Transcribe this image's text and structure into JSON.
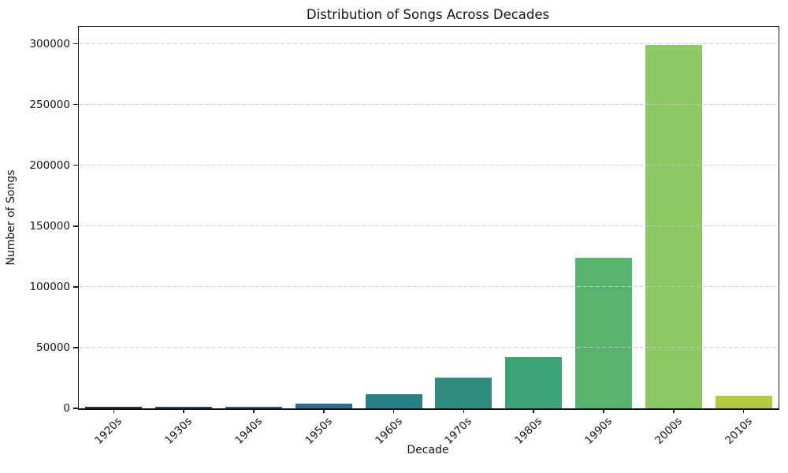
{
  "chart_data": {
    "type": "bar",
    "title": "Distribution of Songs Across Decades",
    "xlabel": "Decade",
    "ylabel": "Number of Songs",
    "categories": [
      "1920s",
      "1930s",
      "1940s",
      "1950s",
      "1960s",
      "1970s",
      "1980s",
      "1990s",
      "2000s",
      "2010s"
    ],
    "values": [
      1000,
      1200,
      1500,
      3600,
      12000,
      25500,
      42500,
      124000,
      299000,
      10300
    ],
    "bar_colors": [
      "#2f3040",
      "#2f4a64",
      "#2e6276",
      "#2e6d8e",
      "#2a8089",
      "#2f8d80",
      "#3ba377",
      "#57b46e",
      "#8cc963",
      "#b5c93f"
    ],
    "dot_textured_bars": [
      "1960s"
    ],
    "ylim": [
      0,
      314000
    ],
    "yticks": [
      0,
      50000,
      100000,
      150000,
      200000,
      250000,
      300000
    ],
    "ytick_labels": [
      "0",
      "50000",
      "100000",
      "150000",
      "200000",
      "250000",
      "300000"
    ],
    "grid": "horizontal-dashed",
    "legend": "none"
  }
}
